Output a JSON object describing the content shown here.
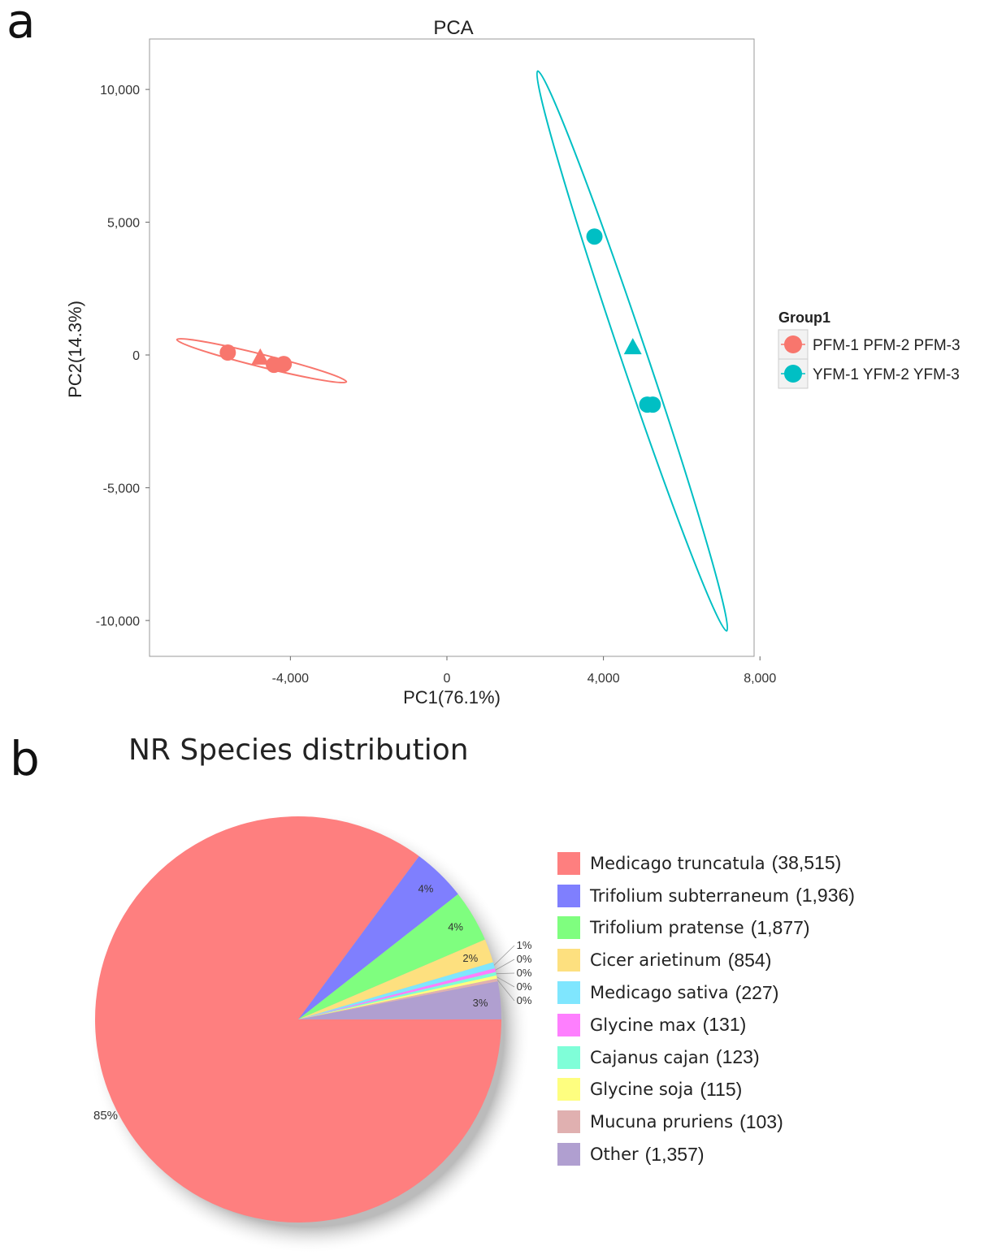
{
  "chart_data": [
    {
      "type": "scatter",
      "panel_label": "a",
      "title": "PCA",
      "xlabel": "PC1(76.1%)",
      "ylabel": "PC2(14.3%)",
      "xlim": [
        -7600,
        7850
      ],
      "ylim": [
        -11350,
        11900
      ],
      "xticks": [
        -4000,
        0,
        4000,
        8000
      ],
      "xtick_labels": [
        "-4,000",
        "0",
        "4,000",
        "8,000"
      ],
      "yticks": [
        10000,
        5000,
        0,
        -5000,
        -10000
      ],
      "ytick_labels": [
        "10,000",
        "5,000",
        "0",
        "-5,000",
        "-10,000"
      ],
      "grid": false,
      "legend": {
        "title": "Group1",
        "placement": "right",
        "entries": [
          {
            "label": "PFM-1  PFM-2  PFM-3",
            "color": "#f8766d"
          },
          {
            "label": "YFM-1  YFM-2  YFM-3",
            "color": "#00bfc4"
          }
        ]
      },
      "series": [
        {
          "name": "PFM",
          "color": "#f8766d",
          "points": [
            {
              "x": -5600,
              "y": 90,
              "shape": "circle"
            },
            {
              "x": -4770,
              "y": -120,
              "shape": "triangle"
            },
            {
              "x": -4420,
              "y": -370,
              "shape": "circle"
            },
            {
              "x": -4170,
              "y": -340,
              "shape": "circle"
            }
          ],
          "ellipse": {
            "end1": [
              -6900,
              580
            ],
            "end2": [
              -2570,
              -1010
            ],
            "minor_halfwidth": 160
          }
        },
        {
          "name": "YFM",
          "color": "#00bfc4",
          "points": [
            {
              "x": 3770,
              "y": 4460,
              "shape": "circle"
            },
            {
              "x": 4750,
              "y": 270,
              "shape": "triangle"
            },
            {
              "x": 5120,
              "y": -1870,
              "shape": "circle"
            },
            {
              "x": 5260,
              "y": -1870,
              "shape": "circle"
            }
          ],
          "ellipse": {
            "end1": [
              2320,
              10690
            ],
            "end2": [
              7150,
              -10390
            ],
            "minor_halfwidth": 330
          }
        }
      ]
    },
    {
      "type": "pie",
      "panel_label": "b",
      "title": "NR Species distribution",
      "categories": [
        "Medicago truncatula",
        "Trifolium subterraneum",
        "Trifolium pratense",
        "Cicer arietinum",
        "Medicago sativa",
        "Glycine max",
        "Cajanus cajan",
        "Glycine soja",
        "Mucuna pruriens",
        "Other"
      ],
      "values": [
        38515,
        1936,
        1877,
        854,
        227,
        131,
        123,
        115,
        103,
        1357
      ],
      "value_labels": [
        "(38,515)",
        "(1,936)",
        "(1,877)",
        "(854)",
        "(227)",
        "(131)",
        "(123)",
        "(115)",
        "(103)",
        "(1,357)"
      ],
      "percent_labels": [
        "85%",
        "4%",
        "4%",
        "2%",
        "1%",
        "0%",
        "0%",
        "0%",
        "0%",
        "3%"
      ],
      "colors": [
        "#fe7f7f",
        "#7f7ffe",
        "#7ffe7f",
        "#fde07f",
        "#7fe6fe",
        "#fe7ffe",
        "#7ffed8",
        "#fefe7f",
        "#e0b0b0",
        "#b09fd0"
      ],
      "legend_placement": "right"
    }
  ]
}
